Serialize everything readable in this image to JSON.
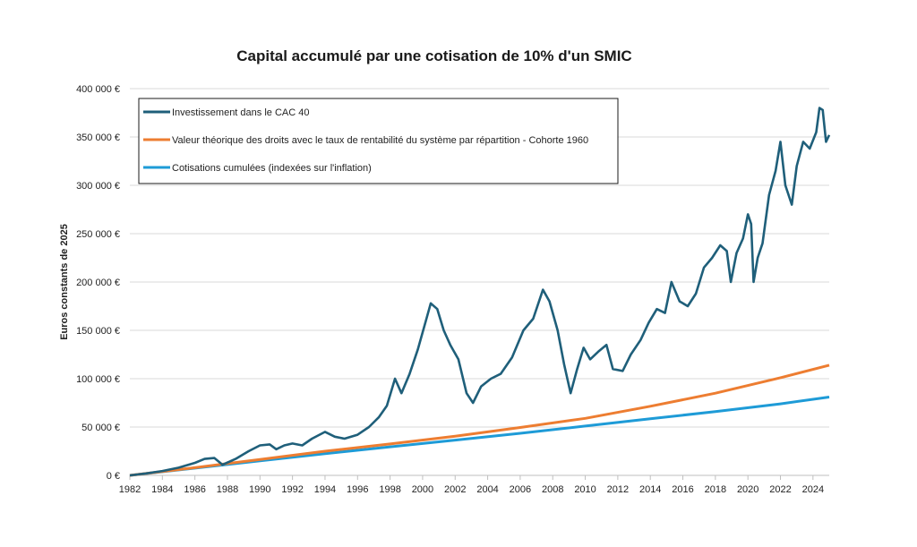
{
  "chart_data": {
    "type": "line",
    "title": "Capital accumulé par une cotisation de 10% d'un SMIC",
    "xlabel": "",
    "ylabel": "Euros constants de 2025",
    "xlim": [
      1982,
      2025
    ],
    "ylim": [
      0,
      400000
    ],
    "grid": true,
    "legend_position": "top-left",
    "x_ticks": [
      1982,
      1984,
      1986,
      1988,
      1990,
      1992,
      1994,
      1996,
      1998,
      2000,
      2002,
      2004,
      2006,
      2008,
      2010,
      2012,
      2014,
      2016,
      2018,
      2020,
      2022,
      2024
    ],
    "x_tick_labels": [
      "1982",
      "1984",
      "1986",
      "1988",
      "1990",
      "1992",
      "1994",
      "1996",
      "1998",
      "2000",
      "2002",
      "2004",
      "2006",
      "2008",
      "2010",
      "2012",
      "2014",
      "2016",
      "2018",
      "2020",
      "2022",
      "2024"
    ],
    "y_ticks": [
      0,
      50000,
      100000,
      150000,
      200000,
      250000,
      300000,
      350000,
      400000
    ],
    "y_tick_labels": [
      "0 €",
      "50 000 €",
      "100 000 €",
      "150 000 €",
      "200 000 €",
      "250 000 €",
      "300 000 €",
      "350 000 €",
      "400 000 €"
    ],
    "series": [
      {
        "name": "Investissement dans le CAC 40",
        "color": "#1f5f7a",
        "points": [
          [
            1982.0,
            0
          ],
          [
            1983.0,
            2000
          ],
          [
            1984.0,
            4500
          ],
          [
            1985.0,
            8000
          ],
          [
            1986.0,
            13000
          ],
          [
            1986.6,
            17000
          ],
          [
            1987.2,
            18000
          ],
          [
            1987.7,
            11000
          ],
          [
            1988.5,
            17000
          ],
          [
            1989.3,
            25000
          ],
          [
            1990.0,
            31000
          ],
          [
            1990.6,
            32000
          ],
          [
            1991.0,
            27000
          ],
          [
            1991.5,
            31000
          ],
          [
            1992.0,
            33000
          ],
          [
            1992.6,
            31000
          ],
          [
            1993.2,
            38000
          ],
          [
            1994.0,
            45000
          ],
          [
            1994.6,
            40000
          ],
          [
            1995.2,
            38000
          ],
          [
            1996.0,
            42000
          ],
          [
            1996.7,
            50000
          ],
          [
            1997.3,
            60000
          ],
          [
            1997.8,
            72000
          ],
          [
            1998.3,
            100000
          ],
          [
            1998.7,
            85000
          ],
          [
            1999.2,
            105000
          ],
          [
            1999.7,
            130000
          ],
          [
            2000.2,
            160000
          ],
          [
            2000.5,
            178000
          ],
          [
            2000.9,
            172000
          ],
          [
            2001.3,
            150000
          ],
          [
            2001.7,
            135000
          ],
          [
            2002.2,
            120000
          ],
          [
            2002.7,
            85000
          ],
          [
            2003.1,
            75000
          ],
          [
            2003.6,
            92000
          ],
          [
            2004.2,
            100000
          ],
          [
            2004.8,
            105000
          ],
          [
            2005.5,
            122000
          ],
          [
            2006.2,
            150000
          ],
          [
            2006.8,
            162000
          ],
          [
            2007.4,
            192000
          ],
          [
            2007.8,
            180000
          ],
          [
            2008.3,
            150000
          ],
          [
            2008.7,
            115000
          ],
          [
            2009.1,
            85000
          ],
          [
            2009.5,
            110000
          ],
          [
            2009.9,
            132000
          ],
          [
            2010.3,
            120000
          ],
          [
            2010.8,
            128000
          ],
          [
            2011.3,
            135000
          ],
          [
            2011.7,
            110000
          ],
          [
            2012.3,
            108000
          ],
          [
            2012.8,
            125000
          ],
          [
            2013.4,
            140000
          ],
          [
            2013.9,
            158000
          ],
          [
            2014.4,
            172000
          ],
          [
            2014.9,
            168000
          ],
          [
            2015.3,
            200000
          ],
          [
            2015.8,
            180000
          ],
          [
            2016.3,
            175000
          ],
          [
            2016.8,
            188000
          ],
          [
            2017.3,
            215000
          ],
          [
            2017.8,
            225000
          ],
          [
            2018.3,
            238000
          ],
          [
            2018.7,
            232000
          ],
          [
            2018.95,
            200000
          ],
          [
            2019.3,
            230000
          ],
          [
            2019.7,
            245000
          ],
          [
            2020.0,
            270000
          ],
          [
            2020.2,
            260000
          ],
          [
            2020.35,
            200000
          ],
          [
            2020.6,
            225000
          ],
          [
            2020.9,
            240000
          ],
          [
            2021.3,
            290000
          ],
          [
            2021.7,
            315000
          ],
          [
            2022.0,
            345000
          ],
          [
            2022.3,
            300000
          ],
          [
            2022.7,
            280000
          ],
          [
            2023.0,
            320000
          ],
          [
            2023.4,
            345000
          ],
          [
            2023.8,
            338000
          ],
          [
            2024.2,
            355000
          ],
          [
            2024.4,
            380000
          ],
          [
            2024.6,
            378000
          ],
          [
            2024.8,
            345000
          ],
          [
            2025.0,
            352000
          ]
        ]
      },
      {
        "name": "Valeur théorique des droits avec le taux de rentabilité du système par répartition - Cohorte 1960",
        "color": "#ed7d31",
        "points": [
          [
            1982,
            0
          ],
          [
            1986,
            8000
          ],
          [
            1990,
            16500
          ],
          [
            1994,
            25000
          ],
          [
            1998,
            32500
          ],
          [
            2002,
            40500
          ],
          [
            2006,
            49500
          ],
          [
            2010,
            59000
          ],
          [
            2014,
            71500
          ],
          [
            2018,
            85000
          ],
          [
            2022,
            101000
          ],
          [
            2025,
            114000
          ]
        ]
      },
      {
        "name": "Cotisations cumulées (indexées sur l'inflation)",
        "color": "#1e9bd7",
        "points": [
          [
            1982,
            0
          ],
          [
            1986,
            7500
          ],
          [
            1990,
            15000
          ],
          [
            1994,
            22500
          ],
          [
            1998,
            29500
          ],
          [
            2002,
            36500
          ],
          [
            2006,
            43500
          ],
          [
            2010,
            51000
          ],
          [
            2014,
            58500
          ],
          [
            2018,
            66000
          ],
          [
            2022,
            74000
          ],
          [
            2025,
            81000
          ]
        ]
      }
    ]
  }
}
